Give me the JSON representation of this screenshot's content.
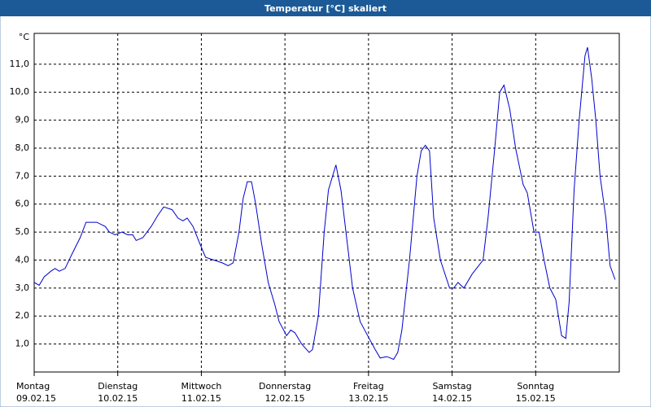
{
  "chart_data": {
    "type": "line",
    "title": "Temperatur [°C] skaliert",
    "y_unit": "°C",
    "xlim": [
      0,
      7
    ],
    "ylim": [
      0,
      12.1
    ],
    "grid": true,
    "xticks": [
      {
        "value": 0,
        "label": "Montag",
        "sublabel": "09.02.15"
      },
      {
        "value": 1,
        "label": "Dienstag",
        "sublabel": "10.02.15"
      },
      {
        "value": 2,
        "label": "Mittwoch",
        "sublabel": "11.02.15"
      },
      {
        "value": 3,
        "label": "Donnerstag",
        "sublabel": "12.02.15"
      },
      {
        "value": 4,
        "label": "Freitag",
        "sublabel": "13.02.15"
      },
      {
        "value": 5,
        "label": "Samstag",
        "sublabel": "14.02.15"
      },
      {
        "value": 6,
        "label": "Sonntag",
        "sublabel": "15.02.15"
      }
    ],
    "yticks": [
      {
        "value": 1,
        "label": "1,0"
      },
      {
        "value": 2,
        "label": "2,0"
      },
      {
        "value": 3,
        "label": "3,0"
      },
      {
        "value": 4,
        "label": "4,0"
      },
      {
        "value": 5,
        "label": "5,0"
      },
      {
        "value": 6,
        "label": "6,0"
      },
      {
        "value": 7,
        "label": "7,0"
      },
      {
        "value": 8,
        "label": "8,0"
      },
      {
        "value": 9,
        "label": "9,0"
      },
      {
        "value": 10,
        "label": "10,0"
      },
      {
        "value": 11,
        "label": "11,0"
      }
    ],
    "color": "#0000cc",
    "x": [
      0,
      0.06,
      0.12,
      0.2,
      0.25,
      0.3,
      0.37,
      0.45,
      0.55,
      0.62,
      0.75,
      0.85,
      0.9,
      0.97,
      1.05,
      1.12,
      1.18,
      1.22,
      1.3,
      1.4,
      1.48,
      1.55,
      1.65,
      1.72,
      1.78,
      1.83,
      1.9,
      1.98,
      2.05,
      2.15,
      2.25,
      2.32,
      2.38,
      2.45,
      2.5,
      2.55,
      2.6,
      2.65,
      2.72,
      2.8,
      2.88,
      2.93,
      3.02,
      3.07,
      3.12,
      3.2,
      3.29,
      3.33,
      3.4,
      3.47,
      3.52,
      3.61,
      3.67,
      3.75,
      3.81,
      3.9,
      3.99,
      4.08,
      4.14,
      4.22,
      4.3,
      4.35,
      4.4,
      4.49,
      4.58,
      4.63,
      4.68,
      4.73,
      4.78,
      4.86,
      4.97,
      5.02,
      5.07,
      5.14,
      5.24,
      5.37,
      5.43,
      5.51,
      5.57,
      5.62,
      5.69,
      5.76,
      5.85,
      5.9,
      5.98,
      6.04,
      6.1,
      6.17,
      6.24,
      6.31,
      6.36,
      6.4,
      6.46,
      6.52,
      6.59,
      6.62,
      6.67,
      6.72,
      6.77,
      6.84,
      6.89,
      6.95
    ],
    "values": [
      3.2,
      3.1,
      3.4,
      3.6,
      3.7,
      3.6,
      3.7,
      4.2,
      4.8,
      5.35,
      5.35,
      5.2,
      5.0,
      4.9,
      5.0,
      4.9,
      4.9,
      4.7,
      4.8,
      5.2,
      5.6,
      5.9,
      5.8,
      5.5,
      5.4,
      5.5,
      5.2,
      4.6,
      4.1,
      4.0,
      3.9,
      3.8,
      3.9,
      5.0,
      6.2,
      6.8,
      6.8,
      6.0,
      4.6,
      3.2,
      2.4,
      1.8,
      1.3,
      1.5,
      1.4,
      1.0,
      0.7,
      0.8,
      2.0,
      5.0,
      6.5,
      7.4,
      6.5,
      4.5,
      3.0,
      1.8,
      1.3,
      0.8,
      0.5,
      0.55,
      0.45,
      0.7,
      1.5,
      4.0,
      7.0,
      7.9,
      8.1,
      7.9,
      5.5,
      4.0,
      3.0,
      3.0,
      3.2,
      3.0,
      3.5,
      4.0,
      5.5,
      8.0,
      10.0,
      10.25,
      9.4,
      8.0,
      6.7,
      6.4,
      5.0,
      5.0,
      4.0,
      3.0,
      2.6,
      1.3,
      1.2,
      2.5,
      6.5,
      9.0,
      11.3,
      11.6,
      10.5,
      9.0,
      7.0,
      5.5,
      3.8,
      3.3
    ]
  }
}
